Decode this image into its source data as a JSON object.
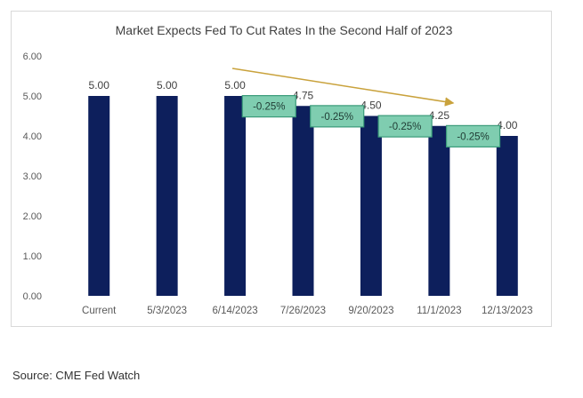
{
  "chart_data": {
    "type": "bar",
    "title": "Market Expects Fed To Cut Rates In the Second Half of 2023",
    "xlabel": "",
    "ylabel": "",
    "categories": [
      "Current",
      "5/3/2023",
      "6/14/2023",
      "7/26/2023",
      "9/20/2023",
      "11/1/2023",
      "12/13/2023"
    ],
    "values": [
      5.0,
      5.0,
      5.0,
      4.75,
      4.5,
      4.25,
      4.0
    ],
    "data_labels": [
      "5.00",
      "5.00",
      "5.00",
      "4.75",
      "4.50",
      "4.25",
      "4.00"
    ],
    "ylim": [
      0,
      6
    ],
    "yticks": [
      "0.00",
      "1.00",
      "2.00",
      "3.00",
      "4.00",
      "5.00",
      "6.00"
    ],
    "grid": false,
    "annotations": [
      {
        "text": "-0.25%",
        "between": [
          "6/14/2023",
          "7/26/2023"
        ]
      },
      {
        "text": "-0.25%",
        "between": [
          "7/26/2023",
          "9/20/2023"
        ]
      },
      {
        "text": "-0.25%",
        "between": [
          "9/20/2023",
          "11/1/2023"
        ]
      },
      {
        "text": "-0.25%",
        "between": [
          "11/1/2023",
          "12/13/2023"
        ]
      }
    ],
    "trend_arrow": {
      "from": "6/14/2023",
      "to": "11/1/2023"
    }
  },
  "colors": {
    "bar": "#0d1f5c",
    "annotation_fill": "#7fcdb0",
    "annotation_border": "#3a9b7a",
    "arrow": "#c9a23c",
    "axis_text": "#595959"
  },
  "source": "Source: CME Fed Watch"
}
